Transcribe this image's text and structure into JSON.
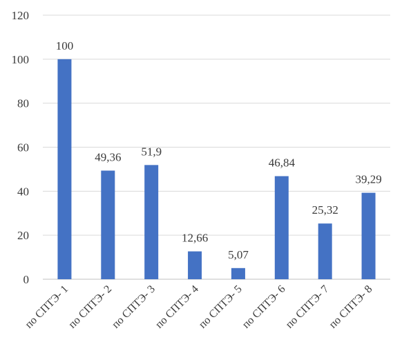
{
  "chart_data": {
    "type": "bar",
    "title": "",
    "xlabel": "",
    "ylabel": "",
    "ylim": [
      0,
      120
    ],
    "yticks": [
      0,
      20,
      40,
      60,
      80,
      100,
      120
    ],
    "grid": true,
    "legend": "none",
    "bar_color": "#4472c4",
    "categories": [
      "по СПТЭ- 1",
      "по СПТЭ- 2",
      "по СПТЭ- 3",
      "по СПТЭ- 4",
      "по СПТЭ- 5",
      "по СПТЭ- 6",
      "по СПТЭ- 7",
      "по СПТЭ- 8"
    ],
    "values": [
      100,
      49.36,
      51.9,
      12.66,
      5.07,
      46.84,
      25.32,
      39.29
    ],
    "data_labels": [
      "100",
      "49,36",
      "51,9",
      "12,66",
      "5,07",
      "46,84",
      "25,32",
      "39,29"
    ]
  }
}
